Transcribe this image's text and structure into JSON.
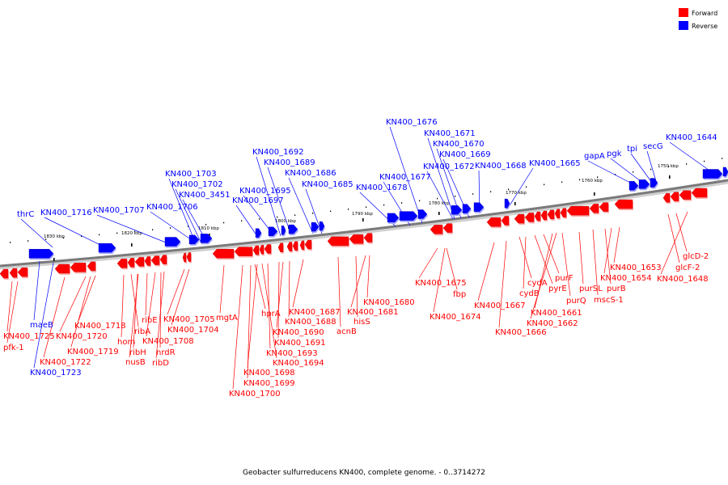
{
  "title": "Geobacter sulfurreducens KN400, complete genome. - 0..3714272",
  "legend": [
    {
      "label": "Forward",
      "color": "#ff0000"
    },
    {
      "label": "Reverse",
      "color": "#0000ff"
    }
  ],
  "colors": {
    "forward": "#ff0000",
    "reverse": "#0000ff",
    "backbone": "#808080"
  },
  "kbp_marks": [
    "1830 kbp",
    "1820 kbp",
    "1810 kbp",
    "1800 kbp",
    "1790 kbp",
    "1780 kbp",
    "1770 kbp",
    "1760 kbp",
    "1750 kbp"
  ],
  "genes": [
    {
      "label": "thrC",
      "strand": "reverse"
    },
    {
      "label": "KN400_1716",
      "strand": "reverse"
    },
    {
      "label": "KN400_1707",
      "strand": "reverse"
    },
    {
      "label": "KN400_1706",
      "strand": "reverse"
    },
    {
      "label": "KN400_1703",
      "strand": "reverse"
    },
    {
      "label": "KN400_1702",
      "strand": "reverse"
    },
    {
      "label": "KN400_3451",
      "strand": "reverse"
    },
    {
      "label": "KN400_1697",
      "strand": "reverse"
    },
    {
      "label": "KN400_1695",
      "strand": "reverse"
    },
    {
      "label": "KN400_1692",
      "strand": "reverse"
    },
    {
      "label": "KN400_1689",
      "strand": "reverse"
    },
    {
      "label": "KN400_1686",
      "strand": "reverse"
    },
    {
      "label": "KN400_1685",
      "strand": "reverse"
    },
    {
      "label": "KN400_1678",
      "strand": "reverse"
    },
    {
      "label": "KN400_1677",
      "strand": "reverse"
    },
    {
      "label": "KN400_1676",
      "strand": "reverse"
    },
    {
      "label": "KN400_1671",
      "strand": "reverse"
    },
    {
      "label": "KN400_1670",
      "strand": "reverse"
    },
    {
      "label": "KN400_1669",
      "strand": "reverse"
    },
    {
      "label": "KN400_1672",
      "strand": "reverse"
    },
    {
      "label": "KN400_1668",
      "strand": "reverse"
    },
    {
      "label": "KN400_1665",
      "strand": "reverse"
    },
    {
      "label": "gapA",
      "strand": "reverse"
    },
    {
      "label": "pgk",
      "strand": "reverse"
    },
    {
      "label": "tpi",
      "strand": "reverse"
    },
    {
      "label": "secG",
      "strand": "reverse"
    },
    {
      "label": "KN400_1644",
      "strand": "reverse"
    },
    {
      "label": "maeB",
      "strand": "reverse"
    },
    {
      "label": "KN400_1723",
      "strand": "reverse"
    },
    {
      "label": "KN400_1725",
      "strand": "forward"
    },
    {
      "label": "pfk-1",
      "strand": "forward"
    },
    {
      "label": "KN400_1720",
      "strand": "forward"
    },
    {
      "label": "KN400_1722",
      "strand": "forward"
    },
    {
      "label": "KN400_1719",
      "strand": "forward"
    },
    {
      "label": "KN400_1718",
      "strand": "forward"
    },
    {
      "label": "hom",
      "strand": "forward"
    },
    {
      "label": "ribA",
      "strand": "forward"
    },
    {
      "label": "ribH",
      "strand": "forward"
    },
    {
      "label": "nusB",
      "strand": "forward"
    },
    {
      "label": "ribE",
      "strand": "forward"
    },
    {
      "label": "KN400_1708",
      "strand": "forward"
    },
    {
      "label": "nrdR",
      "strand": "forward"
    },
    {
      "label": "ribD",
      "strand": "forward"
    },
    {
      "label": "KN400_1705",
      "strand": "forward"
    },
    {
      "label": "KN400_1704",
      "strand": "forward"
    },
    {
      "label": "mgtA",
      "strand": "forward"
    },
    {
      "label": "hprA",
      "strand": "forward"
    },
    {
      "label": "KN400_1700",
      "strand": "forward"
    },
    {
      "label": "KN400_1699",
      "strand": "forward"
    },
    {
      "label": "KN400_1698",
      "strand": "forward"
    },
    {
      "label": "KN400_1694",
      "strand": "forward"
    },
    {
      "label": "KN400_1693",
      "strand": "forward"
    },
    {
      "label": "KN400_1691",
      "strand": "forward"
    },
    {
      "label": "KN400_1690",
      "strand": "forward"
    },
    {
      "label": "KN400_1688",
      "strand": "forward"
    },
    {
      "label": "KN400_1687",
      "strand": "forward"
    },
    {
      "label": "acnB",
      "strand": "forward"
    },
    {
      "label": "hisS",
      "strand": "forward"
    },
    {
      "label": "KN400_1681",
      "strand": "forward"
    },
    {
      "label": "KN400_1680",
      "strand": "forward"
    },
    {
      "label": "KN400_1675",
      "strand": "forward"
    },
    {
      "label": "fbp",
      "strand": "forward"
    },
    {
      "label": "KN400_1674",
      "strand": "forward"
    },
    {
      "label": "KN400_1667",
      "strand": "forward"
    },
    {
      "label": "KN400_1666",
      "strand": "forward"
    },
    {
      "label": "cydA",
      "strand": "forward"
    },
    {
      "label": "cydB",
      "strand": "forward"
    },
    {
      "label": "pyrE",
      "strand": "forward"
    },
    {
      "label": "purF",
      "strand": "forward"
    },
    {
      "label": "KN400_1661",
      "strand": "forward"
    },
    {
      "label": "KN400_1662",
      "strand": "forward"
    },
    {
      "label": "purQ",
      "strand": "forward"
    },
    {
      "label": "purSL",
      "strand": "forward"
    },
    {
      "label": "mscS-1",
      "strand": "forward"
    },
    {
      "label": "purB",
      "strand": "forward"
    },
    {
      "label": "KN400_1654",
      "strand": "forward"
    },
    {
      "label": "KN400_1653",
      "strand": "forward"
    },
    {
      "label": "glcF-2",
      "strand": "forward"
    },
    {
      "label": "glcD-2",
      "strand": "forward"
    },
    {
      "label": "KN400_1648",
      "strand": "forward"
    }
  ]
}
